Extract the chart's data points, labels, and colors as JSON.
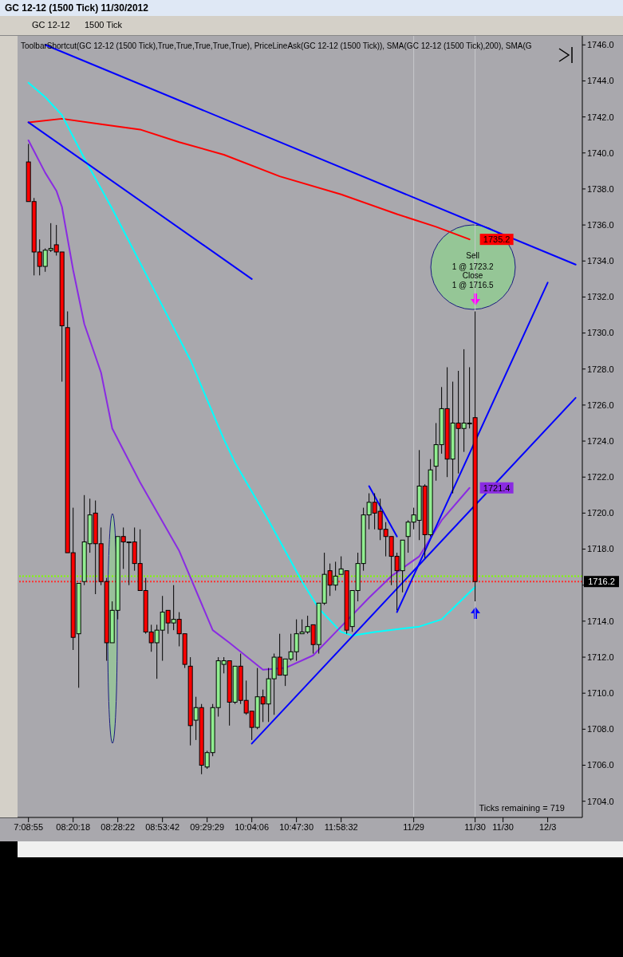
{
  "chart_data": {
    "type": "candlestick",
    "title": "ToolbarShortcut(GC 12-12 (1500 Tick),True,True,True,True,True), PriceLineAsk(GC 12-12 (1500 Tick)), SMA(GC 12-12 (1500 Tick),200), SMA(G",
    "subtitle": "GC 12-12 (1500 Tick)  11/30/2012",
    "categories": [
      "7:08:55",
      null,
      null,
      null,
      null,
      null,
      null,
      null,
      "08:20:18",
      null,
      null,
      null,
      null,
      null,
      null,
      null,
      "08:28:22",
      null,
      null,
      null,
      null,
      null,
      null,
      null,
      "08:53:42",
      null,
      null,
      null,
      null,
      null,
      null,
      null,
      "09:29:29",
      null,
      null,
      null,
      null,
      null,
      null,
      null,
      "10:04:06",
      null,
      null,
      null,
      null,
      null,
      null,
      null,
      "10:47:30",
      null,
      null,
      null,
      null,
      null,
      null,
      null,
      "11:58:32",
      null,
      null,
      null,
      null,
      null,
      null,
      null,
      null,
      null,
      null,
      null,
      null,
      "11/29",
      null,
      null,
      null,
      null,
      null,
      null,
      null,
      null,
      null,
      null,
      "11/30",
      null,
      null,
      null,
      null,
      "11/30",
      null,
      null,
      null,
      null,
      null,
      null,
      null,
      "12/3",
      null,
      null,
      null,
      null,
      null
    ],
    "ohlc": [
      [
        1739.5,
        1740.5,
        1737.3,
        1737.3
      ],
      [
        1737.3,
        1737.5,
        1733.2,
        1734.5
      ],
      [
        1734.5,
        1735.2,
        1733.2,
        1733.7
      ],
      [
        1733.7,
        1734.7,
        1733.4,
        1734.6
      ],
      [
        1734.6,
        1736.1,
        1734.5,
        1734.7
      ],
      [
        1734.9,
        1736.0,
        1734.3,
        1734.5
      ],
      [
        1734.5,
        1734.5,
        1727.3,
        1730.4
      ],
      [
        1730.3,
        1731.2,
        1717.8,
        1717.8
      ],
      [
        1717.8,
        1720.3,
        1712.4,
        1713.1
      ],
      [
        1713.3,
        1716.1,
        1710.3,
        1716.1
      ],
      [
        1716.2,
        1721.0,
        1716.0,
        1718.4
      ],
      [
        1718.3,
        1720.8,
        1717.8,
        1719.9
      ],
      [
        1720.0,
        1720.7,
        1715.5,
        1718.3
      ],
      [
        1718.3,
        1719.2,
        1716.0,
        1716.2
      ],
      [
        1716.2,
        1716.4,
        1711.8,
        1712.8
      ],
      [
        1712.8,
        1715.1,
        1712.8,
        1714.6
      ],
      [
        1714.6,
        1718.7,
        1714.1,
        1718.7
      ],
      [
        1718.7,
        1719.2,
        1716.9,
        1718.4
      ],
      [
        1718.4,
        1718.4,
        1716.0,
        1718.4
      ],
      [
        1718.4,
        1719.2,
        1716.8,
        1717.2
      ],
      [
        1717.2,
        1719.1,
        1715.7,
        1715.7
      ],
      [
        1715.7,
        1716.4,
        1713.3,
        1713.4
      ],
      [
        1713.4,
        1713.8,
        1712.3,
        1712.8
      ],
      [
        1712.8,
        1713.8,
        1710.8,
        1713.5
      ],
      [
        1713.5,
        1715.4,
        1711.8,
        1714.5
      ],
      [
        1714.6,
        1714.6,
        1713.3,
        1713.9
      ],
      [
        1713.9,
        1716.0,
        1713.5,
        1714.1
      ],
      [
        1714.1,
        1714.5,
        1712.6,
        1713.3
      ],
      [
        1713.3,
        1713.3,
        1711.4,
        1711.6
      ],
      [
        1711.5,
        1712.0,
        1707.1,
        1708.2
      ],
      [
        1708.5,
        1709.8,
        1707.4,
        1709.2
      ],
      [
        1709.2,
        1709.4,
        1705.5,
        1706.0
      ],
      [
        1705.9,
        1706.8,
        1705.8,
        1706.7
      ],
      [
        1706.7,
        1709.4,
        1706.5,
        1709.2
      ],
      [
        1709.2,
        1712.0,
        1708.7,
        1711.8
      ],
      [
        1711.6,
        1712.0,
        1711.1,
        1711.8
      ],
      [
        1711.8,
        1711.8,
        1708.2,
        1709.5
      ],
      [
        1709.5,
        1711.5,
        1709.4,
        1711.5
      ],
      [
        1711.5,
        1712.2,
        1709.4,
        1709.6
      ],
      [
        1709.6,
        1710.7,
        1708.8,
        1708.9
      ],
      [
        1709.0,
        1709.0,
        1707.4,
        1708.1
      ],
      [
        1708.1,
        1711.4,
        1708.0,
        1709.8
      ],
      [
        1709.8,
        1710.2,
        1708.4,
        1709.4
      ],
      [
        1709.4,
        1711.4,
        1708.4,
        1710.8
      ],
      [
        1710.8,
        1712.2,
        1708.8,
        1712.0
      ],
      [
        1712.0,
        1713.3,
        1711.0,
        1711.0
      ],
      [
        1711.0,
        1711.9,
        1710.4,
        1711.9
      ],
      [
        1711.9,
        1713.3,
        1711.8,
        1712.3
      ],
      [
        1712.3,
        1714.1,
        1711.8,
        1713.3
      ],
      [
        1713.3,
        1714.1,
        1713.3,
        1713.4
      ],
      [
        1713.4,
        1714.3,
        1713.3,
        1713.7
      ],
      [
        1713.8,
        1713.8,
        1712.2,
        1712.7
      ],
      [
        1712.7,
        1715.0,
        1712.2,
        1715.0
      ],
      [
        1715.0,
        1717.8,
        1714.9,
        1716.6
      ],
      [
        1716.8,
        1717.2,
        1715.4,
        1716.0
      ],
      [
        1716.0,
        1717.3,
        1715.7,
        1716.5
      ],
      [
        1716.6,
        1717.6,
        1716.6,
        1716.9
      ],
      [
        1716.8,
        1716.8,
        1713.3,
        1713.5
      ],
      [
        1713.7,
        1715.7,
        1713.4,
        1715.7
      ],
      [
        1715.7,
        1717.8,
        1715.1,
        1717.2
      ],
      [
        1717.2,
        1720.3,
        1716.8,
        1719.9
      ],
      [
        1719.9,
        1721.1,
        1719.1,
        1720.6
      ],
      [
        1720.6,
        1721.1,
        1719.1,
        1720.0
      ],
      [
        1720.1,
        1720.8,
        1718.5,
        1719.1
      ],
      [
        1719.1,
        1719.5,
        1717.6,
        1718.7
      ],
      [
        1718.7,
        1718.7,
        1716.0,
        1717.6
      ],
      [
        1717.6,
        1717.8,
        1714.6,
        1716.8
      ],
      [
        1716.8,
        1718.5,
        1715.6,
        1718.5
      ],
      [
        1718.7,
        1719.6,
        1717.8,
        1719.5
      ],
      [
        1719.5,
        1720.3,
        1719.1,
        1719.9
      ],
      [
        1719.6,
        1723.5,
        1718.5,
        1721.5
      ],
      [
        1721.5,
        1721.6,
        1717.5,
        1718.8
      ],
      [
        1718.8,
        1723.0,
        1718.7,
        1722.4
      ],
      [
        1722.6,
        1725.0,
        1721.8,
        1723.8
      ],
      [
        1723.8,
        1727.0,
        1723.3,
        1725.8
      ],
      [
        1725.8,
        1728.1,
        1722.0,
        1723.0
      ],
      [
        1723.0,
        1727.3,
        1721.1,
        1725.0
      ],
      [
        1725.0,
        1727.9,
        1722.2,
        1724.7
      ],
      [
        1724.7,
        1729.1,
        1723.4,
        1725.0
      ],
      [
        1725.0,
        1728.1,
        1724.7,
        1725.0
      ],
      [
        1725.3,
        1731.2,
        1715.1,
        1716.2
      ],
      null,
      null,
      null,
      null,
      null,
      null,
      null,
      null,
      null,
      null,
      null,
      null,
      null,
      null,
      null,
      null,
      null,
      null
    ],
    "series": [
      {
        "type": "line",
        "color": "#ff0000",
        "values": [
          1741.7,
          null,
          null,
          null,
          null,
          null,
          1741.9,
          null,
          null,
          null,
          null,
          null,
          null,
          1741.6,
          null,
          null,
          null,
          null,
          null,
          null,
          1741.3,
          null,
          null,
          null,
          null,
          null,
          null,
          1740.6,
          null,
          null,
          null,
          null,
          null,
          null,
          null,
          1739.9,
          null,
          null,
          null,
          null,
          null,
          null,
          null,
          null,
          null,
          1738.7,
          null,
          null,
          null,
          null,
          null,
          null,
          null,
          null,
          null,
          null,
          1737.7,
          null,
          null,
          null,
          null,
          null,
          null,
          null,
          null,
          null,
          1736.6,
          null,
          null,
          null,
          null,
          null,
          null,
          1735.9,
          null,
          null,
          null,
          null,
          null,
          1735.2,
          null,
          null,
          null,
          null,
          null,
          null,
          null,
          null,
          null,
          null,
          null,
          null,
          null,
          null,
          null,
          null,
          null,
          null,
          null
        ],
        "value_labels": [
          null,
          null,
          null,
          null,
          null,
          null,
          null,
          null,
          null,
          null,
          null,
          null,
          null,
          null,
          null,
          null,
          null,
          null,
          null,
          null,
          null,
          null,
          null,
          null,
          null,
          null,
          null,
          null,
          null,
          null,
          null,
          null,
          null,
          null,
          null,
          null,
          null,
          null,
          null,
          null,
          null,
          null,
          null,
          null,
          null,
          null,
          null,
          null,
          null,
          null,
          null,
          null,
          null,
          null,
          null,
          null,
          null,
          null,
          null,
          null,
          null,
          null,
          null,
          null,
          null,
          null,
          null,
          null,
          null,
          null,
          null,
          null,
          null,
          null,
          null,
          null,
          null,
          null,
          null,
          "1735.2",
          null,
          null,
          null,
          null,
          null,
          null,
          null,
          null,
          null,
          null,
          null,
          null,
          null,
          null,
          null,
          null,
          null,
          null,
          null
        ]
      },
      {
        "type": "line",
        "color": "#00ffff",
        "values": [
          1743.9,
          null,
          null,
          1743.1,
          null,
          null,
          1742.1,
          null,
          null,
          null,
          1739.7,
          null,
          null,
          null,
          null,
          1736.9,
          null,
          null,
          null,
          null,
          null,
          null,
          1732.7,
          null,
          null,
          null,
          null,
          null,
          null,
          1728.5,
          null,
          null,
          null,
          null,
          null,
          1724.1,
          null,
          1722.8,
          null,
          null,
          null,
          null,
          null,
          1719.6,
          null,
          null,
          null,
          null,
          null,
          1716.2,
          null,
          null,
          1714.7,
          null,
          null,
          null,
          1713.4,
          null,
          1713.2,
          null,
          null,
          null,
          1713.4,
          null,
          null,
          null,
          null,
          null,
          null,
          null,
          1713.7,
          null,
          null,
          null,
          1714.1,
          null,
          null,
          null,
          1715.3,
          null,
          1715.9,
          null,
          null,
          null,
          null,
          null,
          null,
          null,
          null,
          null,
          null,
          null,
          null,
          null,
          null,
          null,
          null,
          null,
          null
        ]
      },
      {
        "type": "line",
        "color": "#8a2be2",
        "values": [
          1740.7,
          null,
          null,
          1738.9,
          null,
          1737.9,
          1737.0,
          null,
          1733.5,
          null,
          1730.5,
          null,
          null,
          1727.8,
          null,
          1724.7,
          null,
          null,
          null,
          null,
          1721.7,
          null,
          null,
          null,
          null,
          null,
          null,
          1717.9,
          null,
          null,
          null,
          null,
          null,
          1713.5,
          null,
          null,
          1712.8,
          null,
          null,
          null,
          null,
          null,
          1711.3,
          null,
          null,
          null,
          1711.4,
          null,
          null,
          null,
          null,
          1712.1,
          null,
          null,
          null,
          null,
          1713.7,
          null,
          null,
          null,
          null,
          1715.3,
          null,
          null,
          null,
          1716.5,
          null,
          null,
          null,
          null,
          1717.6,
          null,
          null,
          null,
          1719.6,
          null,
          null,
          null,
          null,
          1721.4,
          null,
          null,
          null,
          null,
          null,
          null,
          null,
          null,
          null,
          null,
          null,
          null,
          null,
          null,
          null,
          null,
          null,
          null,
          null
        ],
        "value_labels": [
          null,
          null,
          null,
          null,
          null,
          null,
          null,
          null,
          null,
          null,
          null,
          null,
          null,
          null,
          null,
          null,
          null,
          null,
          null,
          null,
          null,
          null,
          null,
          null,
          null,
          null,
          null,
          null,
          null,
          null,
          null,
          null,
          null,
          null,
          null,
          null,
          null,
          null,
          null,
          null,
          null,
          null,
          null,
          null,
          null,
          null,
          null,
          null,
          null,
          null,
          null,
          null,
          null,
          null,
          null,
          null,
          null,
          null,
          null,
          null,
          null,
          null,
          null,
          null,
          null,
          null,
          null,
          null,
          null,
          null,
          null,
          null,
          null,
          null,
          null,
          null,
          null,
          null,
          null,
          "1721.4",
          null,
          null,
          null,
          null,
          null,
          null,
          null,
          null,
          null,
          null,
          null,
          null,
          null,
          null,
          null,
          null,
          null,
          null,
          null
        ]
      },
      {
        "type": "line",
        "color": "#0000ff",
        "values": [
          null,
          null,
          null,
          1746.0,
          null,
          null,
          null,
          null,
          null,
          null,
          null,
          null,
          null,
          null,
          null,
          null,
          null,
          null,
          null,
          null,
          null,
          null,
          null,
          null,
          null,
          null,
          null,
          null,
          null,
          null,
          null,
          null,
          null,
          null,
          null,
          null,
          null,
          null,
          null,
          null,
          null,
          null,
          null,
          null,
          null,
          null,
          null,
          null,
          null,
          null,
          null,
          null,
          null,
          null,
          null,
          null,
          null,
          null,
          null,
          null,
          null,
          null,
          null,
          null,
          null,
          null,
          null,
          null,
          null,
          null,
          null,
          null,
          null,
          null,
          null,
          null,
          null,
          null,
          null,
          null,
          null,
          null,
          null,
          null,
          null,
          null,
          null,
          null,
          null,
          null,
          null,
          null,
          null,
          null,
          null,
          null,
          null,
          null,
          1733.8
        ]
      },
      {
        "type": "line",
        "color": "#0000ff",
        "values": [
          1741.7,
          null,
          null,
          null,
          null,
          null,
          null,
          null,
          null,
          null,
          null,
          null,
          null,
          null,
          null,
          null,
          null,
          null,
          null,
          null,
          null,
          null,
          null,
          null,
          null,
          null,
          null,
          null,
          null,
          null,
          null,
          null,
          null,
          null,
          null,
          null,
          null,
          null,
          null,
          null,
          1733.0,
          null,
          null,
          null,
          null,
          null,
          null,
          null,
          null,
          null,
          null,
          null,
          null,
          null,
          null,
          null,
          null,
          null,
          null,
          null,
          null,
          null,
          null,
          null,
          null,
          null,
          null,
          null,
          null,
          null,
          null,
          null,
          null,
          null,
          null,
          null,
          null,
          null,
          null,
          null,
          null,
          null,
          null,
          null,
          null,
          null,
          null,
          null,
          null,
          null,
          null,
          null,
          null,
          null,
          null,
          null,
          null,
          null,
          null
        ]
      },
      {
        "type": "line",
        "color": "#0000ff",
        "values": [
          null,
          null,
          null,
          null,
          null,
          null,
          null,
          null,
          null,
          null,
          null,
          null,
          null,
          null,
          null,
          null,
          null,
          null,
          null,
          null,
          null,
          null,
          null,
          null,
          null,
          null,
          null,
          null,
          null,
          null,
          null,
          null,
          null,
          null,
          null,
          null,
          null,
          null,
          null,
          null,
          1707.2,
          null,
          null,
          null,
          null,
          null,
          null,
          null,
          null,
          null,
          null,
          null,
          null,
          null,
          null,
          null,
          null,
          null,
          null,
          null,
          null,
          null,
          null,
          null,
          null,
          null,
          null,
          null,
          null,
          null,
          null,
          null,
          null,
          null,
          null,
          null,
          null,
          null,
          null,
          null,
          null,
          null,
          null,
          null,
          null,
          null,
          null,
          null,
          null,
          null,
          null,
          null,
          null,
          null,
          null,
          null,
          null,
          null,
          1726.4
        ]
      },
      {
        "type": "line",
        "color": "#0000ff",
        "values": [
          null,
          null,
          null,
          null,
          null,
          null,
          null,
          null,
          null,
          null,
          null,
          null,
          null,
          null,
          null,
          null,
          null,
          null,
          null,
          null,
          null,
          null,
          null,
          null,
          null,
          null,
          null,
          null,
          null,
          null,
          null,
          null,
          null,
          null,
          null,
          null,
          null,
          null,
          null,
          null,
          null,
          null,
          null,
          null,
          null,
          null,
          null,
          null,
          null,
          null,
          null,
          null,
          null,
          null,
          null,
          null,
          null,
          null,
          null,
          null,
          null,
          1721.5,
          null,
          null,
          null,
          null,
          1718.7,
          null,
          null,
          null,
          null,
          null,
          null,
          null,
          null,
          null,
          null,
          null,
          null,
          null,
          null,
          null,
          null,
          null,
          null,
          null,
          null,
          null,
          null,
          null,
          null,
          null,
          null,
          null,
          null,
          null,
          null,
          null,
          null
        ]
      },
      {
        "type": "line",
        "color": "#0000ff",
        "values": [
          null,
          null,
          null,
          null,
          null,
          null,
          null,
          null,
          null,
          null,
          null,
          null,
          null,
          null,
          null,
          null,
          null,
          null,
          null,
          null,
          null,
          null,
          null,
          null,
          null,
          null,
          null,
          null,
          null,
          null,
          null,
          null,
          null,
          null,
          null,
          null,
          null,
          null,
          null,
          null,
          null,
          null,
          null,
          null,
          null,
          null,
          null,
          null,
          null,
          null,
          null,
          null,
          null,
          null,
          null,
          null,
          null,
          null,
          null,
          null,
          null,
          null,
          null,
          null,
          null,
          null,
          1714.5,
          null,
          null,
          null,
          null,
          null,
          null,
          null,
          null,
          null,
          null,
          null,
          null,
          null,
          null,
          null,
          null,
          null,
          null,
          null,
          null,
          null,
          null,
          null,
          null,
          null,
          null,
          1732.8,
          null,
          null,
          null,
          null,
          null
        ]
      }
    ],
    "ylim": [
      1703.1,
      1746.5
    ],
    "yticks": [
      {
        "value": 1704,
        "label": "1704.0"
      },
      {
        "value": 1706,
        "label": "1706.0"
      },
      {
        "value": 1708,
        "label": "1708.0"
      },
      {
        "value": 1710,
        "label": "1710.0"
      },
      {
        "value": 1712,
        "label": "1712.0"
      },
      {
        "value": 1714,
        "label": "1714.0"
      },
      {
        "value": 1716,
        "label": null
      },
      {
        "value": 1718,
        "label": "1718.0"
      },
      {
        "value": 1720,
        "label": "1720.0"
      },
      {
        "value": 1722,
        "label": "1722.0"
      },
      {
        "value": 1724,
        "label": "1724.0"
      },
      {
        "value": 1726,
        "label": "1726.0"
      },
      {
        "value": 1728,
        "label": "1728.0"
      },
      {
        "value": 1730,
        "label": "1730.0"
      },
      {
        "value": 1732,
        "label": "1732.0"
      },
      {
        "value": 1734,
        "label": "1734.0"
      },
      {
        "value": 1736,
        "label": "1736.0"
      },
      {
        "value": 1738,
        "label": "1738.0"
      },
      {
        "value": 1740,
        "label": "1740.0"
      },
      {
        "value": 1742,
        "label": "1742.0"
      },
      {
        "value": 1744,
        "label": "1744.0"
      },
      {
        "value": 1746,
        "label": "1746.0"
      }
    ],
    "ref_lines": [
      {
        "axis": "y",
        "value": 1716.5,
        "color": "#7fff00",
        "line_style": "dotted"
      },
      {
        "axis": "y",
        "value": 1716.2,
        "label": "1716.2",
        "color": "#ff3030",
        "line_style": "dotted"
      },
      {
        "axis": "x",
        "value": "11/29",
        "color": "#c8c8cc"
      },
      {
        "axis": "x",
        "value": "11/30",
        "color": "#c8c8cc"
      }
    ],
    "annotations": [
      "GC 12-12",
      "1500 Tick",
      "Ticks remaining = 719",
      {
        "text": "Sell",
        "y": 1734.3
      },
      {
        "text": "1 @ 1723.2",
        "y": 1733.7
      },
      {
        "text": "Close",
        "y": 1733.2
      },
      {
        "text": "1 @ 1716.5",
        "y": 1732.7
      }
    ]
  }
}
